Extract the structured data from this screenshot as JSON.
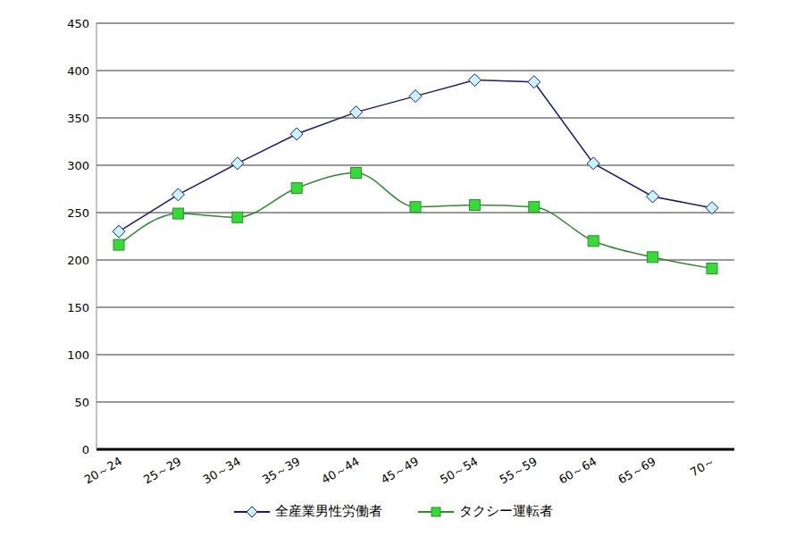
{
  "chart_data": {
    "type": "line",
    "categories": [
      "20～24",
      "25～29",
      "30～34",
      "35～39",
      "40～44",
      "45～49",
      "50～54",
      "55～59",
      "60～64",
      "65～69",
      "70～"
    ],
    "series": [
      {
        "name": "全産業男性労働者",
        "color": "#1a1a6e",
        "marker": "diamond",
        "line_style": "solid",
        "values": [
          230,
          269,
          302,
          333,
          356,
          373,
          390,
          388,
          302,
          267,
          255
        ]
      },
      {
        "name": "タクシー運転者",
        "color": "#2e8b2e",
        "marker": "square",
        "line_style": "solid",
        "values": [
          216,
          249,
          245,
          276,
          292,
          256,
          258,
          256,
          220,
          203,
          191
        ]
      }
    ],
    "ylim": [
      0,
      450
    ],
    "yticks": [
      0,
      50,
      100,
      150,
      200,
      250,
      300,
      350,
      400,
      450
    ],
    "grid": true,
    "legend": "bottom"
  }
}
